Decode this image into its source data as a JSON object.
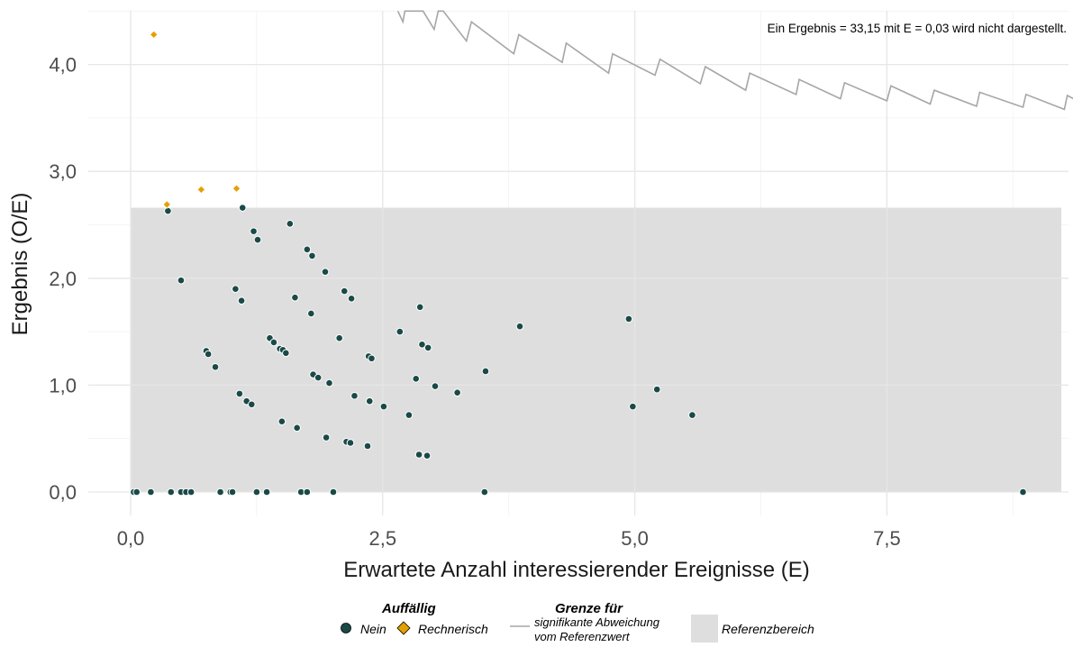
{
  "chart_data": {
    "type": "scatter",
    "xlabel": "Erwartete Anzahl interessierender Ereignisse (E)",
    "ylabel": "Ergebnis (O/E)",
    "xlim": [
      -0.85,
      9.28
    ],
    "ylim": [
      -0.22,
      4.5
    ],
    "x_ticks": [
      0.0,
      2.5,
      5.0,
      7.5
    ],
    "x_tick_labels": [
      "0,0",
      "2,5",
      "5,0",
      "7,5"
    ],
    "y_ticks": [
      0.0,
      1.0,
      2.0,
      3.0,
      4.0
    ],
    "y_tick_labels": [
      "0,0",
      "1,0",
      "2,0",
      "3,0",
      "4,0"
    ],
    "grid": true,
    "annotation": "Ein Ergebnis = 33,15 mit E = 0,03 wird nicht dargestellt.",
    "reference_range": {
      "x": [
        0.0,
        9.23
      ],
      "y": [
        0.0,
        2.66
      ],
      "color": "#dedede"
    },
    "colors": {
      "nein": "#1a4a48",
      "rechnerisch": "#e69f00",
      "limit_line": "#a6a6a6",
      "reference": "#dedede"
    },
    "series": [
      {
        "name": "Nein",
        "marker": "circle",
        "color": "#1a4a48",
        "points": [
          [
            0.03,
            0.0
          ],
          [
            0.06,
            0.0
          ],
          [
            0.2,
            0.0
          ],
          [
            0.4,
            0.0
          ],
          [
            0.5,
            0.0
          ],
          [
            0.55,
            0.0
          ],
          [
            0.6,
            0.0
          ],
          [
            0.89,
            0.0
          ],
          [
            0.99,
            0.0
          ],
          [
            1.01,
            0.0
          ],
          [
            1.25,
            0.0
          ],
          [
            1.35,
            0.0
          ],
          [
            1.69,
            0.0
          ],
          [
            1.75,
            0.0
          ],
          [
            2.01,
            0.0
          ],
          [
            3.51,
            0.0
          ],
          [
            8.85,
            0.0
          ],
          [
            0.37,
            2.63
          ],
          [
            0.5,
            1.98
          ],
          [
            0.75,
            1.32
          ],
          [
            0.77,
            1.29
          ],
          [
            0.84,
            1.17
          ],
          [
            1.04,
            1.9
          ],
          [
            1.08,
            0.92
          ],
          [
            1.1,
            1.79
          ],
          [
            1.11,
            2.66
          ],
          [
            1.15,
            0.85
          ],
          [
            1.2,
            0.82
          ],
          [
            1.22,
            2.44
          ],
          [
            1.26,
            2.36
          ],
          [
            1.38,
            1.44
          ],
          [
            1.42,
            1.4
          ],
          [
            1.48,
            1.34
          ],
          [
            1.5,
            0.66
          ],
          [
            1.51,
            1.33
          ],
          [
            1.54,
            1.3
          ],
          [
            1.58,
            2.51
          ],
          [
            1.63,
            1.82
          ],
          [
            1.65,
            0.6
          ],
          [
            1.75,
            2.27
          ],
          [
            1.79,
            1.67
          ],
          [
            1.8,
            2.21
          ],
          [
            1.81,
            1.1
          ],
          [
            1.86,
            1.07
          ],
          [
            1.93,
            2.06
          ],
          [
            1.94,
            0.51
          ],
          [
            1.97,
            1.02
          ],
          [
            2.07,
            1.44
          ],
          [
            2.12,
            1.88
          ],
          [
            2.14,
            0.47
          ],
          [
            2.18,
            0.46
          ],
          [
            2.19,
            1.81
          ],
          [
            2.22,
            0.9
          ],
          [
            2.35,
            0.43
          ],
          [
            2.36,
            1.27
          ],
          [
            2.37,
            0.85
          ],
          [
            2.39,
            1.25
          ],
          [
            2.51,
            0.8
          ],
          [
            2.67,
            1.5
          ],
          [
            2.76,
            0.72
          ],
          [
            2.83,
            1.06
          ],
          [
            2.86,
            0.35
          ],
          [
            2.87,
            1.73
          ],
          [
            2.89,
            1.38
          ],
          [
            2.94,
            0.34
          ],
          [
            2.95,
            1.35
          ],
          [
            3.02,
            0.99
          ],
          [
            3.24,
            0.93
          ],
          [
            3.52,
            1.13
          ],
          [
            3.86,
            1.55
          ],
          [
            4.94,
            1.62
          ],
          [
            4.98,
            0.8
          ],
          [
            5.22,
            0.96
          ],
          [
            5.57,
            0.72
          ]
        ]
      },
      {
        "name": "Rechnerisch",
        "marker": "diamond",
        "color": "#e69f00",
        "points": [
          [
            0.23,
            4.28
          ],
          [
            0.36,
            2.69
          ],
          [
            0.7,
            2.83
          ],
          [
            1.05,
            2.84
          ]
        ]
      },
      {
        "name": "signifikante Abweichung vom Referenzwert",
        "marker": "line",
        "color": "#a6a6a6",
        "points": [
          [
            2.65,
            4.5
          ],
          [
            2.7,
            4.4
          ],
          [
            2.72,
            4.5
          ],
          [
            2.9,
            4.5
          ],
          [
            3.01,
            4.33
          ],
          [
            3.05,
            4.5
          ],
          [
            3.1,
            4.5
          ],
          [
            3.33,
            4.22
          ],
          [
            3.38,
            4.4
          ],
          [
            3.8,
            4.1
          ],
          [
            3.85,
            4.28
          ],
          [
            4.28,
            4.02
          ],
          [
            4.32,
            4.2
          ],
          [
            4.74,
            3.92
          ],
          [
            4.78,
            4.1
          ],
          [
            5.2,
            3.9
          ],
          [
            5.25,
            4.05
          ],
          [
            5.65,
            3.82
          ],
          [
            5.7,
            3.98
          ],
          [
            6.1,
            3.76
          ],
          [
            6.14,
            3.92
          ],
          [
            6.6,
            3.72
          ],
          [
            6.63,
            3.86
          ],
          [
            7.04,
            3.68
          ],
          [
            7.08,
            3.83
          ],
          [
            7.5,
            3.66
          ],
          [
            7.54,
            3.8
          ],
          [
            7.93,
            3.63
          ],
          [
            7.97,
            3.76
          ],
          [
            8.39,
            3.61
          ],
          [
            8.42,
            3.74
          ],
          [
            8.85,
            3.6
          ],
          [
            8.88,
            3.72
          ],
          [
            9.26,
            3.58
          ],
          [
            9.29,
            3.71
          ],
          [
            9.43,
            3.64
          ]
        ]
      }
    ],
    "legend": {
      "placement": "bottom",
      "auffaellig_title": "Auffällig",
      "nein_label": "Nein",
      "rechnerisch_label": "Rechnerisch",
      "grenze_title": "Grenze für",
      "grenze_label_line1": "signifikante Abweichung",
      "grenze_label_line2": "vom Referenzwert",
      "referenz_label": "Referenzbereich"
    }
  }
}
